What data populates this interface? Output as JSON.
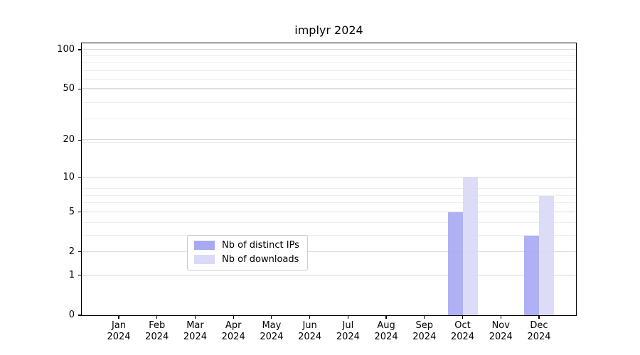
{
  "figure": {
    "title": "implyr 2024"
  },
  "chart_data": {
    "type": "bar",
    "title": "implyr 2024",
    "categories": [
      "Jan 2024",
      "Feb 2024",
      "Mar 2024",
      "Apr 2024",
      "May 2024",
      "Jun 2024",
      "Jul 2024",
      "Aug 2024",
      "Sep 2024",
      "Oct 2024",
      "Nov 2024",
      "Dec 2024"
    ],
    "series": [
      {
        "name": "Nb of distinct IPs",
        "color": "#a9a9f3",
        "values": [
          0,
          0,
          0,
          0,
          0,
          0,
          0,
          0,
          0,
          5,
          0,
          3
        ]
      },
      {
        "name": "Nb of downloads",
        "color": "#d9d9f8",
        "values": [
          0,
          0,
          0,
          0,
          0,
          0,
          0,
          0,
          0,
          10,
          0,
          7
        ]
      }
    ],
    "xlabel": "",
    "ylabel": "",
    "yscale": "log1p",
    "yticks": [
      0,
      1,
      2,
      5,
      10,
      20,
      50,
      100
    ],
    "ylim": [
      0,
      100
    ],
    "grid": "horizontal major and minor",
    "legend_position": "bottom center inside plot"
  }
}
